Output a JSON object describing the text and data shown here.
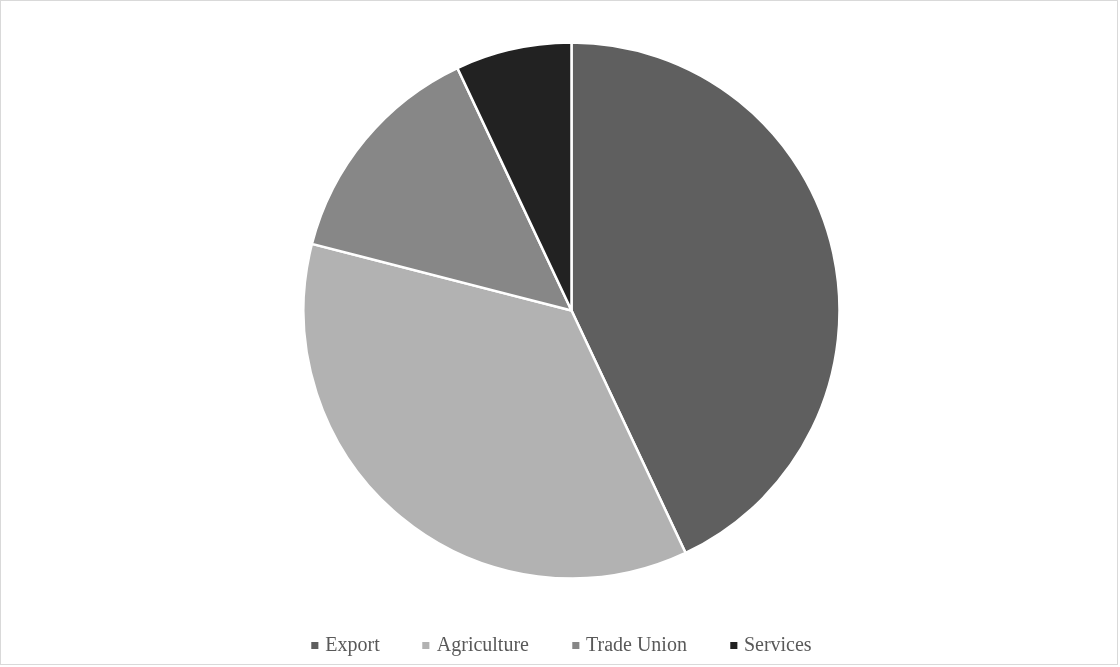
{
  "chart_data": {
    "type": "pie",
    "categories": [
      "Export",
      "Agriculture",
      "Trade Union",
      "Services"
    ],
    "values": [
      43,
      36,
      14,
      7
    ],
    "colors": [
      "#5f5f5f",
      "#b2b2b2",
      "#878787",
      "#222222"
    ],
    "legend": "bottom"
  }
}
